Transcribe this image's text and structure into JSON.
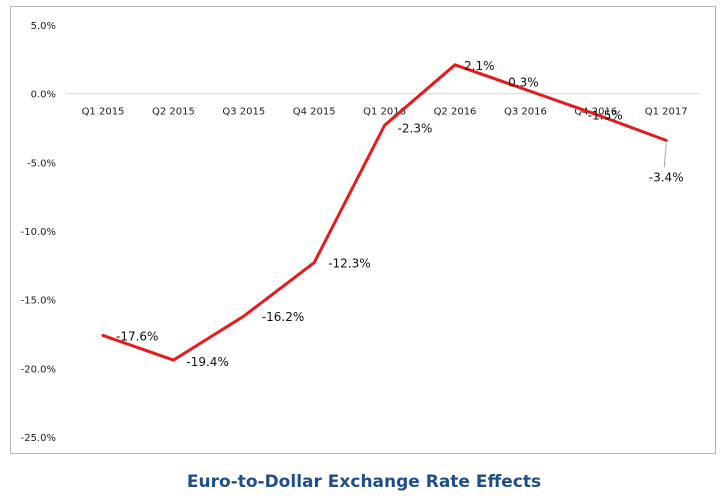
{
  "chart_data": {
    "type": "line",
    "title": "Euro-to-Dollar Exchange Rate Effects",
    "categories": [
      "Q1 2015",
      "Q2 2015",
      "Q3 2015",
      "Q4 2015",
      "Q1 2016",
      "Q2 2016",
      "Q3 2016",
      "Q4 2016",
      "Q1 2017"
    ],
    "series": [
      {
        "values": [
          -17.6,
          -19.4,
          -16.2,
          -12.3,
          -2.3,
          2.1,
          0.3,
          -1.5,
          -3.4
        ]
      }
    ],
    "data_labels": [
      "-17.6%",
      "-19.4%",
      "-16.2%",
      "-12.3%",
      "-2.3%",
      "2.1%",
      "0.3%",
      "-1.5%",
      "-3.4%"
    ],
    "y_ticks": [
      5,
      0,
      -5,
      -10,
      -15,
      -20,
      -25
    ],
    "y_tick_labels": [
      "5.0%",
      "0.0%",
      "-5.0%",
      "-10.0%",
      "-15.0%",
      "-20.0%",
      "-25.0%"
    ],
    "ylim": [
      -25,
      5
    ],
    "line_color": "#e8191b",
    "gridlines": false
  }
}
